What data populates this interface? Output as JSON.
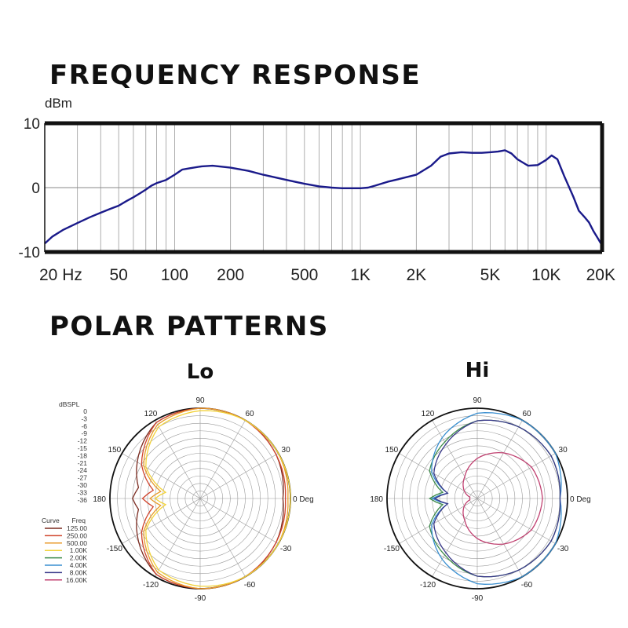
{
  "frequency_response": {
    "heading": "FREQUENCY RESPONSE",
    "y_unit": "dBm",
    "y_ticks": [
      "10",
      "0",
      "-10"
    ],
    "x_ticks": [
      {
        "label": "20 Hz",
        "freq": 20
      },
      {
        "label": "50",
        "freq": 50
      },
      {
        "label": "100",
        "freq": 100
      },
      {
        "label": "200",
        "freq": 200
      },
      {
        "label": "500",
        "freq": 500
      },
      {
        "label": "1K",
        "freq": 1000
      },
      {
        "label": "2K",
        "freq": 2000
      },
      {
        "label": "5K",
        "freq": 5000
      },
      {
        "label": "10K",
        "freq": 10000
      },
      {
        "label": "20K",
        "freq": 20000
      }
    ],
    "line_color": "#1a1a8a"
  },
  "polar": {
    "heading": "POLAR PATTERNS",
    "plots": [
      {
        "title": "Lo"
      },
      {
        "title": "Hi"
      }
    ],
    "angle_labels": [
      "90",
      "60",
      "30",
      "0 Deg",
      "-30",
      "-60",
      "-90",
      "-120",
      "-150",
      "180",
      "150",
      "120"
    ],
    "scale_title": "dBSPL",
    "scale_ticks": [
      "0",
      "-3",
      "-6",
      "-9",
      "-12",
      "-15",
      "-18",
      "-21",
      "-24",
      "-27",
      "-30",
      "-33",
      "-36"
    ],
    "legend_curve_header": "Curve",
    "legend_freq_header": "Freq",
    "legend": [
      {
        "freq": "125.00",
        "color": "#7a2a1f"
      },
      {
        "freq": "250.00",
        "color": "#d0452e"
      },
      {
        "freq": "500.00",
        "color": "#e89a2a"
      },
      {
        "freq": "1.00K",
        "color": "#f2d23a"
      },
      {
        "freq": "2.00K",
        "color": "#3d8a4a"
      },
      {
        "freq": "4.00K",
        "color": "#3a8fd0"
      },
      {
        "freq": "8.00K",
        "color": "#3a3a8a"
      },
      {
        "freq": "16.00K",
        "color": "#c04070"
      }
    ]
  },
  "chart_data": [
    {
      "type": "line",
      "title": "FREQUENCY RESPONSE",
      "xlabel": "",
      "ylabel": "dBm",
      "xscale": "log",
      "xlim": [
        20,
        20000
      ],
      "ylim": [
        -10,
        10
      ],
      "grid": true,
      "series": [
        {
          "x": [
            20,
            22,
            25,
            30,
            35,
            40,
            45,
            50,
            55,
            60,
            65,
            70,
            75,
            80,
            90,
            100,
            110,
            120,
            140,
            160,
            200,
            250,
            300,
            400,
            500,
            600,
            700,
            800,
            900,
            1000,
            1100,
            1200,
            1400,
            1600,
            2000,
            2400,
            2700,
            3000,
            3500,
            4000,
            4500,
            5000,
            5500,
            6000,
            6500,
            7000,
            8000,
            9000,
            10000,
            10700,
            11500,
            12500,
            14000,
            15000,
            16000,
            17000,
            18000,
            19000,
            20000
          ],
          "y": [
            -8.7,
            -7.6,
            -6.6,
            -5.5,
            -4.6,
            -3.9,
            -3.3,
            -2.8,
            -2.1,
            -1.5,
            -0.9,
            -0.3,
            0.3,
            0.7,
            1.2,
            2.0,
            2.8,
            3.0,
            3.3,
            3.4,
            3.1,
            2.6,
            2.0,
            1.2,
            0.6,
            0.2,
            0.0,
            -0.1,
            -0.1,
            -0.1,
            0.0,
            0.3,
            0.9,
            1.3,
            2.0,
            3.4,
            4.8,
            5.3,
            5.5,
            5.4,
            5.4,
            5.5,
            5.6,
            5.8,
            5.3,
            4.4,
            3.4,
            3.5,
            4.3,
            5.0,
            4.4,
            1.8,
            -1.4,
            -3.6,
            -4.5,
            -5.4,
            -6.8,
            -7.9,
            -9.0
          ]
        }
      ]
    },
    {
      "type": "line",
      "title": "Lo",
      "polar": true,
      "rlim": [
        -36,
        0
      ],
      "series": [
        {
          "name": "125.00",
          "theta": [
            0,
            30,
            60,
            90,
            120,
            150,
            170,
            180,
            190,
            210,
            240,
            270,
            300,
            330
          ],
          "r": [
            -3,
            -1,
            0,
            0,
            -1,
            -7,
            -11,
            -9,
            -11,
            -7,
            -1,
            0,
            0,
            -1
          ]
        },
        {
          "name": "250.00",
          "theta": [
            0,
            30,
            60,
            90,
            120,
            150,
            170,
            180,
            190,
            210,
            240,
            270,
            300,
            330
          ],
          "r": [
            -2,
            -1,
            0,
            0,
            -1,
            -9,
            -17,
            -13,
            -17,
            -9,
            -1,
            0,
            0,
            -1
          ]
        },
        {
          "name": "500.00",
          "theta": [
            0,
            30,
            60,
            90,
            120,
            150,
            170,
            180,
            190,
            210,
            240,
            270,
            300,
            330
          ],
          "r": [
            -1,
            0,
            0,
            0,
            -2,
            -10,
            -20,
            -16,
            -20,
            -10,
            -2,
            0,
            0,
            0
          ]
        },
        {
          "name": "1.00K",
          "theta": [
            0,
            30,
            60,
            90,
            120,
            150,
            170,
            180,
            190,
            210,
            240,
            270,
            300,
            330
          ],
          "r": [
            0,
            0,
            0,
            -1,
            -3,
            -11,
            -22,
            -18,
            -22,
            -11,
            -3,
            -1,
            0,
            0
          ]
        }
      ]
    },
    {
      "type": "line",
      "title": "Hi",
      "polar": true,
      "rlim": [
        -36,
        0
      ],
      "series": [
        {
          "name": "2.00K",
          "theta": [
            0,
            30,
            60,
            90,
            120,
            150,
            170,
            180,
            190,
            210,
            240,
            270,
            300,
            330
          ],
          "r": [
            -3,
            -2,
            -3,
            -5,
            -10,
            -14,
            -22,
            -17,
            -22,
            -14,
            -10,
            -5,
            -3,
            -2
          ]
        },
        {
          "name": "4.00K",
          "theta": [
            0,
            30,
            60,
            90,
            120,
            150,
            170,
            180,
            190,
            210,
            240,
            270,
            300,
            330
          ],
          "r": [
            -3,
            0,
            0,
            -2,
            -8,
            -15,
            -24,
            -18,
            -24,
            -15,
            -8,
            -2,
            0,
            0
          ]
        },
        {
          "name": "8.00K",
          "theta": [
            0,
            30,
            60,
            90,
            120,
            150,
            170,
            180,
            190,
            210,
            240,
            270,
            300,
            330
          ],
          "r": [
            -3,
            -2,
            -3,
            -5,
            -11,
            -16,
            -24,
            -19,
            -24,
            -16,
            -11,
            -5,
            -3,
            -2
          ]
        },
        {
          "name": "16.00K",
          "theta": [
            0,
            30,
            60,
            90,
            120,
            150,
            170,
            180,
            190,
            210,
            240,
            270,
            300,
            330
          ],
          "r": [
            -10,
            -11,
            -15,
            -20,
            -26,
            -30,
            -33,
            -33,
            -33,
            -30,
            -26,
            -20,
            -15,
            -11
          ]
        }
      ]
    }
  ]
}
